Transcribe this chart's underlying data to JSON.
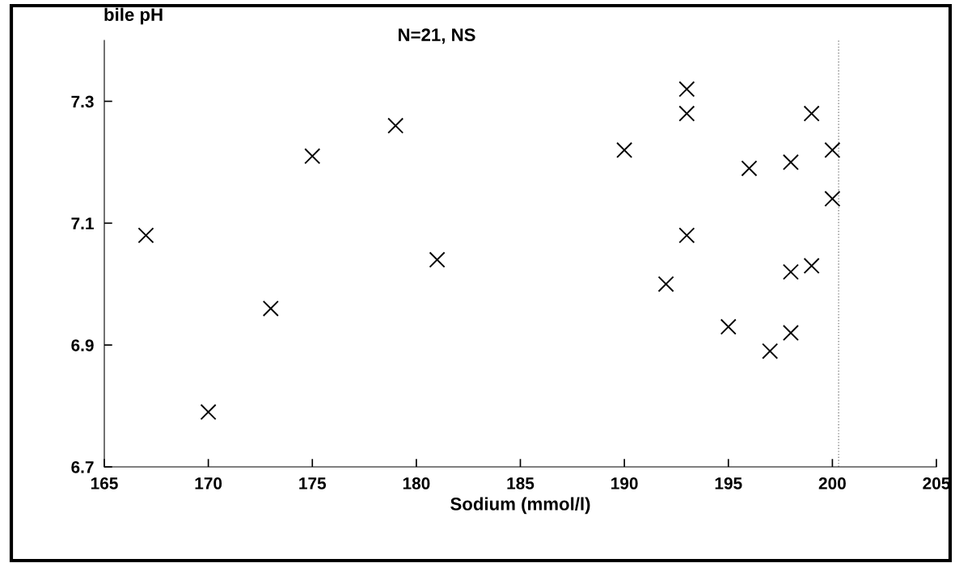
{
  "chart_data": {
    "type": "scatter",
    "title": "N=21, NS",
    "xlabel": "Sodium (mmol/l)",
    "ylabel": "bile pH",
    "x": [
      167,
      170,
      173,
      175,
      179,
      181,
      190,
      193,
      193,
      199,
      200,
      198,
      196,
      200,
      193,
      199,
      198,
      192,
      195,
      198,
      197
    ],
    "series": [
      {
        "color": "#000000",
        "values": [
          7.08,
          6.79,
          6.96,
          7.21,
          7.26,
          7.04,
          7.22,
          7.32,
          7.28,
          7.28,
          7.22,
          7.2,
          7.19,
          7.14,
          7.08,
          7.03,
          7.02,
          7.0,
          6.93,
          6.92,
          6.89
        ]
      }
    ],
    "xlim": [
      165,
      205
    ],
    "xticks": [
      165,
      170,
      175,
      180,
      185,
      190,
      195,
      200,
      205
    ],
    "ylim": [
      6.7,
      7.4
    ],
    "yticks": [
      6.7,
      6.9,
      7.1,
      7.3
    ],
    "ref_lines": [
      {
        "axis": "x",
        "value": 200.3,
        "color": "#888888",
        "line_style": "dotted"
      }
    ],
    "marker": "cross",
    "grid": false,
    "legend": false
  }
}
